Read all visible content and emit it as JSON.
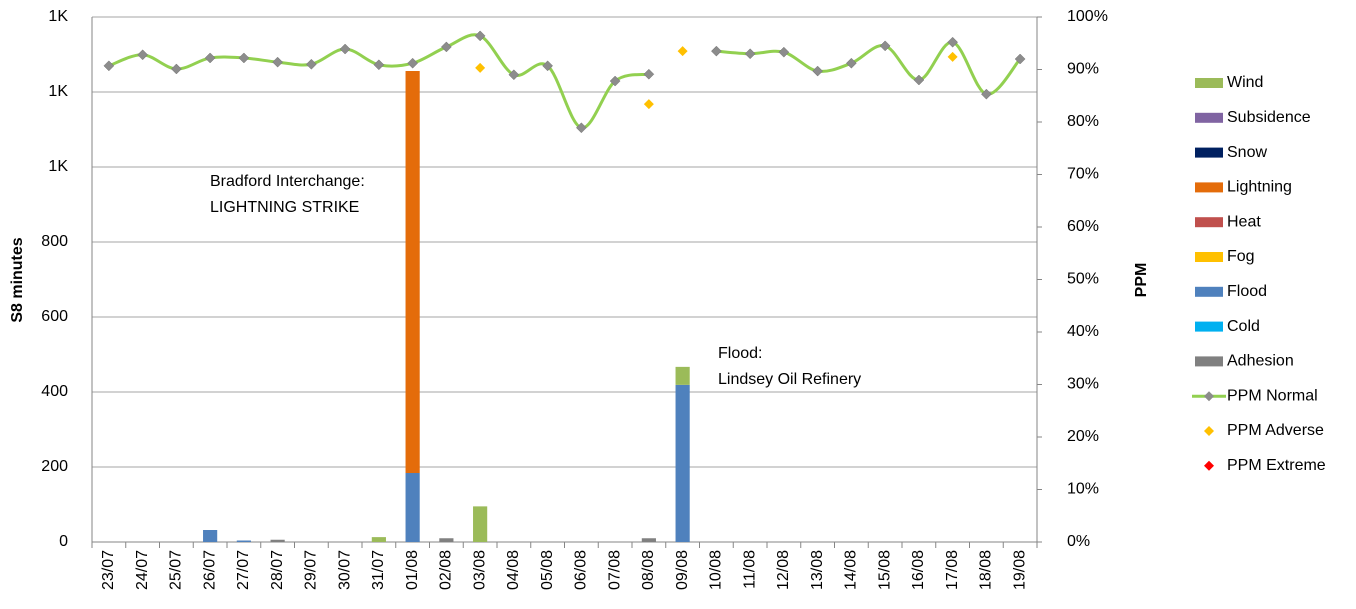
{
  "chart_data": {
    "type": "bar",
    "stacked": true,
    "grid": true,
    "legend": "right",
    "y_label": "S8 minutes",
    "y2_label": "PPM",
    "categories": [
      "23/07",
      "24/07",
      "25/07",
      "26/07",
      "27/07",
      "28/07",
      "29/07",
      "30/07",
      "31/07",
      "01/08",
      "02/08",
      "03/08",
      "04/08",
      "05/08",
      "06/08",
      "07/08",
      "08/08",
      "09/08",
      "10/08",
      "11/08",
      "12/08",
      "13/08",
      "14/08",
      "15/08",
      "16/08",
      "17/08",
      "18/08",
      "19/08"
    ],
    "ylim": [
      0,
      1400
    ],
    "yticks": [
      0,
      200,
      400,
      600,
      800,
      {
        "value": 1000,
        "label": "1K"
      },
      {
        "value": 1200,
        "label": "1K"
      },
      {
        "value": 1400,
        "label": "1K"
      }
    ],
    "y2lim": [
      0,
      100
    ],
    "y2ticks": [
      {
        "value": 0,
        "label": "0%"
      },
      {
        "value": 10,
        "label": "10%"
      },
      {
        "value": 20,
        "label": "20%"
      },
      {
        "value": 30,
        "label": "30%"
      },
      {
        "value": 40,
        "label": "40%"
      },
      {
        "value": 50,
        "label": "50%"
      },
      {
        "value": 60,
        "label": "60%"
      },
      {
        "value": 70,
        "label": "70%"
      },
      {
        "value": 80,
        "label": "80%"
      },
      {
        "value": 90,
        "label": "90%"
      },
      {
        "value": 100,
        "label": "100%"
      }
    ],
    "series": [
      {
        "name": "Adhesion",
        "color": "#808080",
        "values": [
          0,
          0,
          0,
          0,
          0,
          6,
          0,
          0,
          0,
          0,
          10,
          0,
          0,
          0,
          0,
          0,
          10,
          0,
          0,
          0,
          0,
          0,
          0,
          0,
          0,
          0,
          0,
          0
        ]
      },
      {
        "name": "Cold",
        "color": "#00b0f0",
        "values": [
          0,
          0,
          0,
          0,
          0,
          0,
          0,
          0,
          0,
          0,
          0,
          0,
          0,
          0,
          0,
          0,
          0,
          0,
          0,
          0,
          0,
          0,
          0,
          0,
          0,
          0,
          0,
          0
        ]
      },
      {
        "name": "Flood",
        "color": "#4f81bd",
        "values": [
          0,
          0,
          0,
          32,
          4,
          0,
          0,
          0,
          0,
          184,
          0,
          0,
          0,
          0,
          0,
          0,
          0,
          419,
          0,
          0,
          0,
          0,
          0,
          0,
          0,
          0,
          0,
          0
        ]
      },
      {
        "name": "Fog",
        "color": "#ffc000",
        "values": [
          0,
          0,
          0,
          0,
          0,
          0,
          0,
          0,
          0,
          0,
          0,
          0,
          0,
          0,
          0,
          0,
          0,
          0,
          0,
          0,
          0,
          0,
          0,
          0,
          0,
          0,
          0,
          0
        ]
      },
      {
        "name": "Heat",
        "color": "#c0504d",
        "values": [
          0,
          0,
          0,
          0,
          0,
          0,
          0,
          0,
          0,
          0,
          0,
          0,
          0,
          0,
          0,
          0,
          0,
          0,
          0,
          0,
          0,
          0,
          0,
          0,
          0,
          0,
          0,
          0
        ]
      },
      {
        "name": "Lightning",
        "color": "#e46c0a",
        "values": [
          0,
          0,
          0,
          0,
          0,
          0,
          0,
          0,
          0,
          1072,
          0,
          0,
          0,
          0,
          0,
          0,
          0,
          0,
          0,
          0,
          0,
          0,
          0,
          0,
          0,
          0,
          0,
          0
        ]
      },
      {
        "name": "Snow",
        "color": "#002060",
        "values": [
          0,
          0,
          0,
          0,
          0,
          0,
          0,
          0,
          0,
          0,
          0,
          0,
          0,
          0,
          0,
          0,
          0,
          0,
          0,
          0,
          0,
          0,
          0,
          0,
          0,
          0,
          0,
          0
        ]
      },
      {
        "name": "Subsidence",
        "color": "#8064a2",
        "values": [
          0,
          0,
          0,
          0,
          0,
          0,
          0,
          0,
          0,
          0,
          0,
          0,
          0,
          0,
          0,
          0,
          0,
          0,
          0,
          0,
          0,
          0,
          0,
          0,
          0,
          0,
          0,
          0
        ]
      },
      {
        "name": "Wind",
        "color": "#9bbb59",
        "values": [
          0,
          0,
          0,
          0,
          0,
          0,
          0,
          0,
          13,
          0,
          0,
          95,
          0,
          0,
          0,
          0,
          0,
          48,
          0,
          0,
          0,
          0,
          0,
          0,
          0,
          0,
          0,
          0
        ]
      },
      {
        "name": "PPM Normal",
        "type": "line",
        "axis": "y2",
        "color": "#92d050",
        "marker_color": "#8c8c8c",
        "values": [
          90.7,
          92.8,
          90.1,
          92.2,
          92.2,
          91.4,
          91.0,
          93.9,
          90.9,
          91.2,
          94.3,
          96.4,
          89.0,
          90.7,
          78.9,
          87.8,
          89.1,
          null,
          93.5,
          93.0,
          93.3,
          89.7,
          91.2,
          94.5,
          88.0,
          95.2,
          85.3,
          92.0
        ]
      },
      {
        "name": "PPM Adverse",
        "type": "scatter",
        "axis": "y2",
        "color": "#ffc000",
        "values": [
          null,
          null,
          null,
          null,
          null,
          null,
          null,
          null,
          null,
          null,
          null,
          90.3,
          null,
          null,
          null,
          null,
          83.4,
          93.5,
          null,
          null,
          null,
          null,
          null,
          null,
          null,
          92.4,
          null,
          null
        ]
      },
      {
        "name": "PPM Extreme",
        "type": "scatter",
        "axis": "y2",
        "color": "#ff0000",
        "values": [
          null,
          null,
          null,
          null,
          null,
          null,
          null,
          null,
          null,
          null,
          null,
          null,
          null,
          null,
          null,
          null,
          null,
          null,
          null,
          null,
          null,
          null,
          null,
          null,
          null,
          null,
          null,
          null
        ]
      }
    ],
    "annotations": [
      {
        "lines": [
          "Bradford Interchange:",
          "LIGHTNING STRIKE"
        ]
      },
      {
        "lines": [
          "Flood:",
          "Lindsey Oil Refinery"
        ]
      }
    ]
  }
}
